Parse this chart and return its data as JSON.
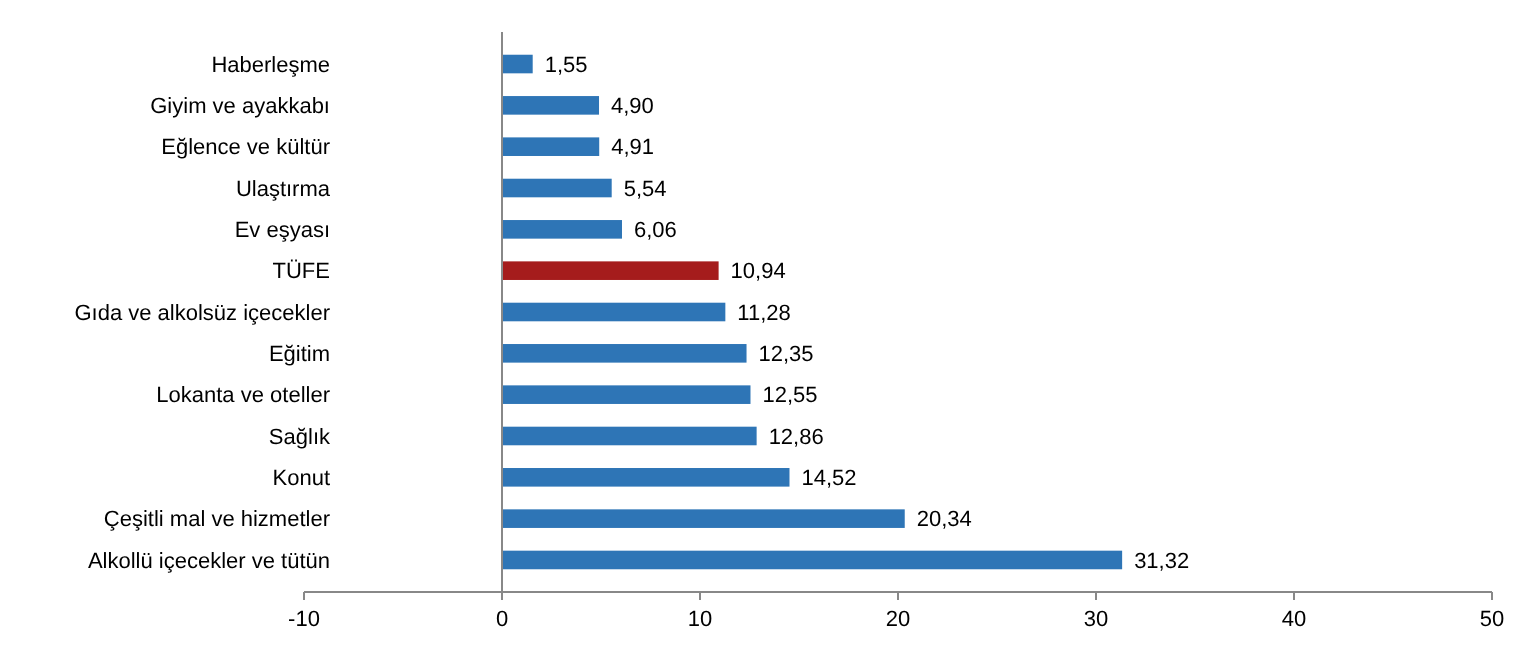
{
  "chart_data": {
    "type": "bar",
    "orientation": "horizontal",
    "categories": [
      "Haberleşme",
      "Giyim ve ayakkabı",
      "Eğlence ve kültür",
      "Ulaştırma",
      "Ev eşyası",
      "TÜFE",
      "Gıda ve alkolsüz içecekler",
      "Eğitim",
      "Lokanta ve oteller",
      "Sağlık",
      "Konut",
      "Çeşitli mal ve hizmetler",
      "Alkollü içecekler ve tütün"
    ],
    "values": [
      1.55,
      4.9,
      4.91,
      5.54,
      6.06,
      10.94,
      11.28,
      12.35,
      12.55,
      12.86,
      14.52,
      20.34,
      31.32
    ],
    "value_labels": [
      "1,55",
      "4,90",
      "4,91",
      "5,54",
      "6,06",
      "10,94",
      "11,28",
      "12,35",
      "12,55",
      "12,86",
      "14,52",
      "20,34",
      "31,32"
    ],
    "colors": [
      "#2e75b6",
      "#2e75b6",
      "#2e75b6",
      "#2e75b6",
      "#2e75b6",
      "#a51c1c",
      "#2e75b6",
      "#2e75b6",
      "#2e75b6",
      "#2e75b6",
      "#2e75b6",
      "#2e75b6",
      "#2e75b6"
    ],
    "xlim": [
      -10,
      50
    ],
    "xticks": [
      -10,
      0,
      10,
      20,
      30,
      40,
      50
    ]
  }
}
